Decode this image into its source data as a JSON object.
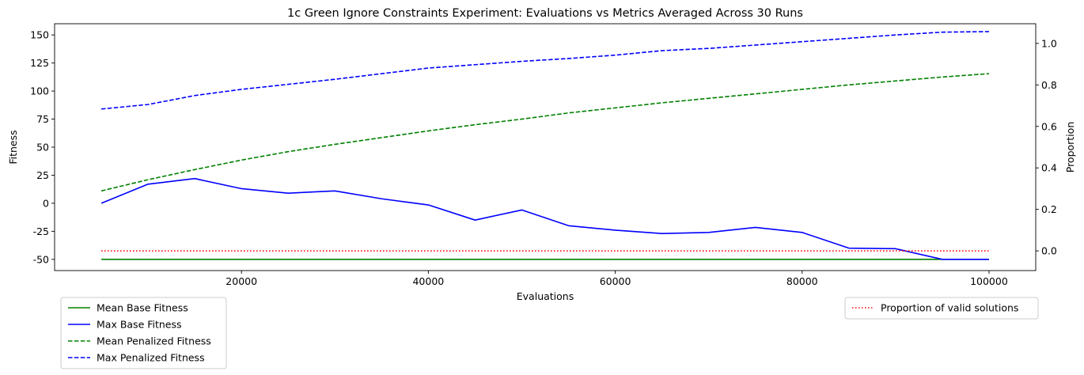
{
  "chart_data": {
    "type": "line",
    "title": "1c Green Ignore Constraints Experiment: Evaluations vs Metrics Averaged Across 30 Runs",
    "xlabel": "Evaluations",
    "ylabel": "Fitness",
    "y2label": "Proportion",
    "xlim": [
      0,
      105000
    ],
    "ylim": [
      -60,
      160
    ],
    "y2lim": [
      -0.095,
      1.095
    ],
    "x_ticks": [
      20000,
      40000,
      60000,
      80000,
      100000
    ],
    "y_ticks": [
      -50,
      -25,
      0,
      25,
      50,
      75,
      100,
      125,
      150
    ],
    "y2_ticks": [
      0.0,
      0.2,
      0.4,
      0.6,
      0.8,
      1.0
    ],
    "x": [
      5000,
      10000,
      15000,
      20000,
      25000,
      30000,
      35000,
      40000,
      45000,
      50000,
      55000,
      60000,
      65000,
      70000,
      75000,
      80000,
      85000,
      90000,
      95000,
      100000
    ],
    "grid": false,
    "series": [
      {
        "name": "Mean Base Fitness",
        "axis": "left",
        "color": "#008000",
        "dash": "solid",
        "values": [
          -50,
          -50,
          -50,
          -50,
          -50,
          -50,
          -50,
          -50,
          -50,
          -50,
          -50,
          -50,
          -50,
          -50,
          -50,
          -50,
          -50,
          -50,
          -50,
          -50
        ]
      },
      {
        "name": "Max Base Fitness",
        "axis": "left",
        "color": "#0000ff",
        "dash": "solid",
        "values": [
          0,
          17,
          22,
          13,
          9,
          11,
          4,
          -1.5,
          -15,
          -6,
          -20,
          -24,
          -27,
          -26,
          -21.5,
          -26,
          -40,
          -40.5,
          -50,
          -50
        ]
      },
      {
        "name": "Mean Penalized Fitness",
        "axis": "left",
        "color": "#008000",
        "dash": "dashed",
        "values": [
          11,
          21,
          30,
          38.5,
          46,
          52.5,
          58.5,
          64.5,
          70,
          75,
          80.5,
          85,
          89.5,
          93.5,
          97.5,
          101.5,
          105.5,
          109,
          112.5,
          115.5
        ]
      },
      {
        "name": "Max Penalized Fitness",
        "axis": "left",
        "color": "#0000ff",
        "dash": "dashed",
        "values": [
          84,
          88,
          96,
          101.5,
          106,
          110.5,
          115.5,
          120.5,
          123.5,
          126.5,
          129,
          132,
          136,
          138,
          141,
          144,
          147,
          150,
          152.5,
          153
        ]
      },
      {
        "name": "Proportion of valid solutions",
        "axis": "right",
        "color": "#ff0000",
        "dash": "dotted",
        "values": [
          0,
          0,
          0,
          0,
          0,
          0,
          0,
          0,
          0,
          0,
          0,
          0,
          0,
          0,
          0,
          0,
          0,
          0,
          0,
          0
        ]
      }
    ],
    "legend_left": [
      "Mean Base Fitness",
      "Max Base Fitness",
      "Mean Penalized Fitness",
      "Max Penalized Fitness"
    ],
    "legend_right": [
      "Proportion of valid solutions"
    ],
    "legend_left_placement": "below-left",
    "legend_right_placement": "below-right"
  }
}
